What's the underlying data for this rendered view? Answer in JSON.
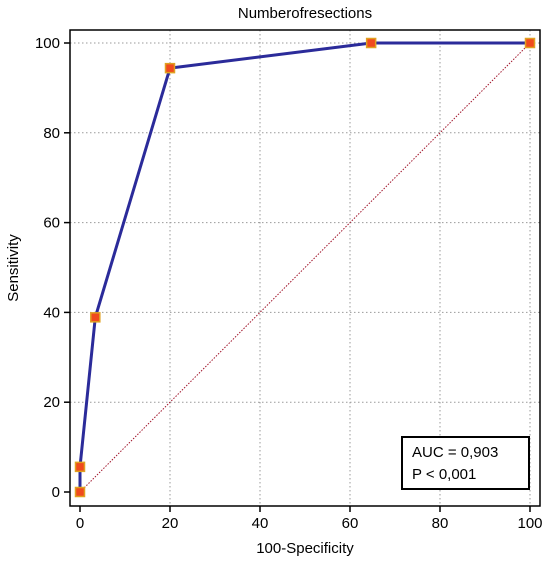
{
  "chart_data": {
    "type": "line",
    "title": "Numberofresections",
    "xlabel": "100-Specificity",
    "ylabel": "Sensitivity",
    "xlim": [
      0,
      100
    ],
    "ylim": [
      0,
      100
    ],
    "xticks": [
      "0",
      "20",
      "40",
      "60",
      "80",
      "100"
    ],
    "yticks": [
      "0",
      "20",
      "40",
      "60",
      "80",
      "100"
    ],
    "grid": true,
    "series": [
      {
        "x": [
          0,
          0,
          3.4,
          20,
          64.7,
          100
        ],
        "y": [
          0,
          5.6,
          38.9,
          94.4,
          100,
          100
        ],
        "color": "#2b2b9a",
        "marker_fill": "#f04a1e",
        "marker_edge": "#e0a020"
      }
    ],
    "reference_line": {
      "from": [
        0,
        0
      ],
      "to": [
        100,
        100
      ],
      "color": "#a0142a"
    },
    "annotations": [
      "AUC = 0,903",
      "P < 0,001"
    ]
  }
}
